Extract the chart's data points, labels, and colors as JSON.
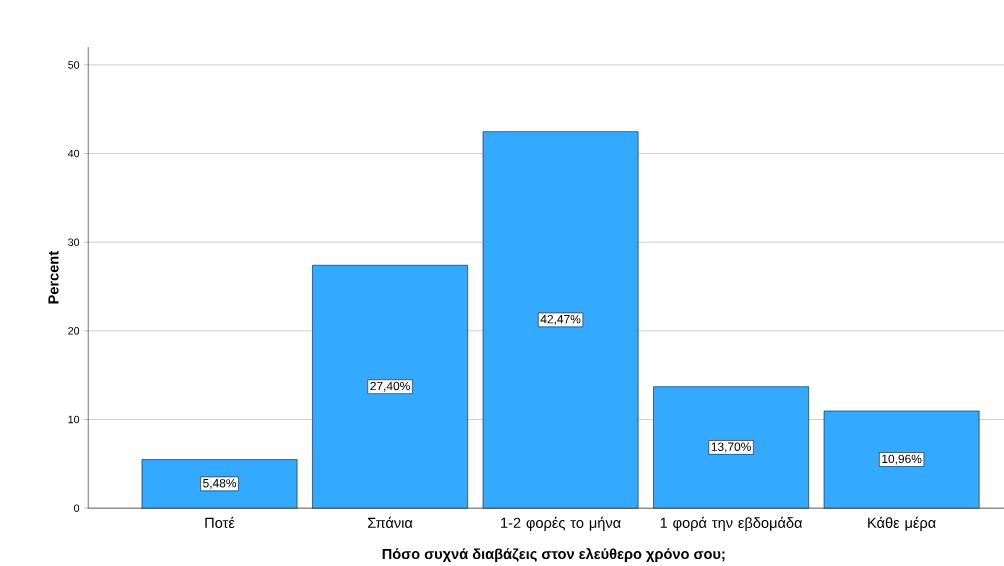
{
  "chart_data": {
    "type": "bar",
    "xlabel": "Πόσο συχνά διαβάζεις στον ελεύθερο χρόνο σου;",
    "ylabel": "Percent",
    "categories": [
      "Ποτέ",
      "Σπάνια",
      "1-2 φορές το μήνα",
      "1 φορά την εβδομάδα",
      "Κάθε μέρα"
    ],
    "values": [
      5.48,
      27.4,
      42.47,
      13.7,
      10.96
    ],
    "value_labels": [
      "5,48%",
      "27,40%",
      "42,47%",
      "13,70%",
      "10,96%"
    ],
    "color": "#33aaff",
    "ylim": [
      0,
      52
    ],
    "yticks": [
      0,
      10,
      20,
      30,
      40,
      50
    ],
    "grid": "y"
  }
}
